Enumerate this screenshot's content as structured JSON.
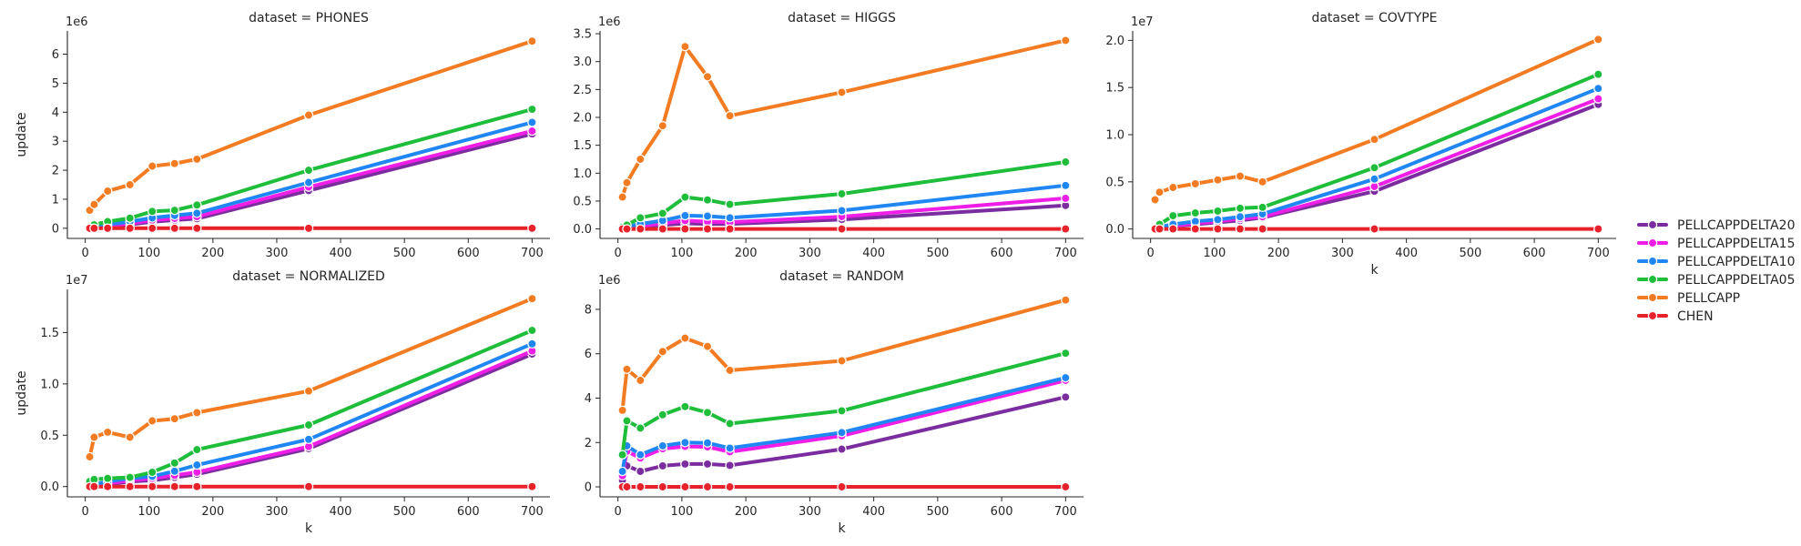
{
  "chart_data": {
    "type": "line",
    "x_label": "k",
    "y_label": "update",
    "legend": {
      "placement": "right",
      "entries": [
        "PELLCAPPDELTA20",
        "PELLCAPPDELTA15",
        "PELLCAPPDELTA10",
        "PELLCAPPDELTA05",
        "PELLCAPP",
        "CHEN"
      ]
    },
    "colors": {
      "PELLCAPPDELTA20": "#7b2d9f",
      "PELLCAPPDELTA15": "#ee1ee6",
      "PELLCAPPDELTA10": "#1f86f4",
      "PELLCAPPDELTA05": "#1ebd3a",
      "PELLCAPP": "#f37b22",
      "CHEN": "#e8222b"
    },
    "x": [
      7,
      14,
      35,
      70,
      105,
      140,
      175,
      350,
      700
    ],
    "panels": [
      {
        "title": "dataset = PHONES",
        "offset": "1e6",
        "ylim": [
          -0.35,
          6.8
        ],
        "yticks": [
          0,
          1,
          2,
          3,
          4,
          5,
          6
        ],
        "ytick_labels": [
          "0",
          "1",
          "2",
          "3",
          "4",
          "5",
          "6"
        ],
        "series": [
          {
            "name": "PELLCAPPDELTA20",
            "values": [
              0.01,
              0.03,
              0.07,
              0.13,
              0.22,
              0.28,
              0.33,
              1.3,
              3.25
            ]
          },
          {
            "name": "PELLCAPPDELTA15",
            "values": [
              0.01,
              0.04,
              0.09,
              0.16,
              0.28,
              0.34,
              0.4,
              1.42,
              3.35
            ]
          },
          {
            "name": "PELLCAPPDELTA10",
            "values": [
              0.02,
              0.06,
              0.13,
              0.23,
              0.36,
              0.44,
              0.52,
              1.58,
              3.65
            ]
          },
          {
            "name": "PELLCAPPDELTA05",
            "values": [
              0.05,
              0.12,
              0.23,
              0.35,
              0.58,
              0.62,
              0.8,
              2.0,
              4.1
            ]
          },
          {
            "name": "PELLCAPP",
            "values": [
              0.62,
              0.82,
              1.28,
              1.5,
              2.14,
              2.23,
              2.38,
              3.9,
              6.45
            ]
          },
          {
            "name": "CHEN",
            "values": [
              0.0,
              0.0,
              0.0,
              0.0,
              0.0,
              0.0,
              0.0,
              0.0,
              0.0
            ]
          }
        ]
      },
      {
        "title": "dataset = HIGGS",
        "offset": "1e6",
        "ylim": [
          -0.17,
          3.55
        ],
        "yticks": [
          0,
          0.5,
          1.0,
          1.5,
          2.0,
          2.5,
          3.0,
          3.5
        ],
        "ytick_labels": [
          "0.0",
          "0.5",
          "1.0",
          "1.5",
          "2.0",
          "2.5",
          "3.0",
          "3.5"
        ],
        "series": [
          {
            "name": "PELLCAPPDELTA20",
            "values": [
              0.01,
              0.02,
              0.04,
              0.07,
              0.1,
              0.09,
              0.09,
              0.17,
              0.42
            ]
          },
          {
            "name": "PELLCAPPDELTA15",
            "values": [
              0.01,
              0.02,
              0.05,
              0.1,
              0.15,
              0.13,
              0.12,
              0.22,
              0.55
            ]
          },
          {
            "name": "PELLCAPPDELTA10",
            "values": [
              0.02,
              0.04,
              0.09,
              0.15,
              0.24,
              0.23,
              0.2,
              0.33,
              0.78
            ]
          },
          {
            "name": "PELLCAPPDELTA05",
            "values": [
              0.03,
              0.07,
              0.2,
              0.28,
              0.57,
              0.52,
              0.44,
              0.63,
              1.2
            ]
          },
          {
            "name": "PELLCAPP",
            "values": [
              0.57,
              0.83,
              1.25,
              1.85,
              3.27,
              2.73,
              2.03,
              2.45,
              3.38
            ]
          },
          {
            "name": "CHEN",
            "values": [
              0.0,
              0.0,
              0.0,
              0.0,
              0.0,
              0.0,
              0.0,
              0.0,
              0.0
            ]
          }
        ]
      },
      {
        "title": "dataset = COVTYPE",
        "offset": "1e7",
        "ylim": [
          -0.1,
          2.1
        ],
        "yticks": [
          0,
          0.5,
          1.0,
          1.5,
          2.0
        ],
        "ytick_labels": [
          "0.0",
          "0.5",
          "1.0",
          "1.5",
          "2.0"
        ],
        "series": [
          {
            "name": "PELLCAPPDELTA20",
            "values": [
              0.0,
              0.01,
              0.03,
              0.05,
              0.07,
              0.09,
              0.12,
              0.4,
              1.32
            ]
          },
          {
            "name": "PELLCAPPDELTA15",
            "values": [
              0.0,
              0.01,
              0.03,
              0.06,
              0.08,
              0.11,
              0.13,
              0.45,
              1.38
            ]
          },
          {
            "name": "PELLCAPPDELTA10",
            "values": [
              0.0,
              0.02,
              0.05,
              0.08,
              0.1,
              0.13,
              0.16,
              0.53,
              1.49
            ]
          },
          {
            "name": "PELLCAPPDELTA05",
            "values": [
              0.0,
              0.05,
              0.14,
              0.17,
              0.19,
              0.22,
              0.23,
              0.65,
              1.64
            ]
          },
          {
            "name": "PELLCAPP",
            "values": [
              0.31,
              0.39,
              0.44,
              0.48,
              0.52,
              0.56,
              0.5,
              0.95,
              2.01
            ]
          },
          {
            "name": "CHEN",
            "values": [
              0.0,
              0.0,
              0.0,
              0.0,
              0.0,
              0.0,
              0.0,
              0.0,
              0.0
            ]
          }
        ]
      },
      {
        "title": "dataset = NORMALIZED",
        "offset": "1e7",
        "ylim": [
          -0.1,
          1.92
        ],
        "yticks": [
          0,
          0.5,
          1.0,
          1.5
        ],
        "ytick_labels": [
          "0.0",
          "0.5",
          "1.0",
          "1.5"
        ],
        "series": [
          {
            "name": "PELLCAPPDELTA20",
            "values": [
              0.0,
              0.01,
              0.02,
              0.05,
              0.06,
              0.09,
              0.12,
              0.37,
              1.29
            ]
          },
          {
            "name": "PELLCAPPDELTA15",
            "values": [
              0.0,
              0.01,
              0.03,
              0.06,
              0.08,
              0.11,
              0.14,
              0.39,
              1.32
            ]
          },
          {
            "name": "PELLCAPPDELTA10",
            "values": [
              0.01,
              0.02,
              0.05,
              0.08,
              0.1,
              0.15,
              0.21,
              0.46,
              1.39
            ]
          },
          {
            "name": "PELLCAPPDELTA05",
            "values": [
              0.05,
              0.07,
              0.08,
              0.09,
              0.14,
              0.23,
              0.36,
              0.6,
              1.52
            ]
          },
          {
            "name": "PELLCAPP",
            "values": [
              0.29,
              0.48,
              0.53,
              0.48,
              0.64,
              0.66,
              0.72,
              0.93,
              1.83
            ]
          },
          {
            "name": "CHEN",
            "values": [
              0.0,
              0.0,
              0.0,
              0.0,
              0.0,
              0.0,
              0.0,
              0.0,
              0.0
            ]
          }
        ]
      },
      {
        "title": "dataset = RANDOM",
        "offset": "1e6",
        "ylim": [
          -0.45,
          8.9
        ],
        "yticks": [
          0,
          2,
          4,
          6,
          8
        ],
        "ytick_labels": [
          "0",
          "2",
          "4",
          "6",
          "8"
        ],
        "series": [
          {
            "name": "PELLCAPPDELTA20",
            "values": [
              0.3,
              0.95,
              0.7,
              0.95,
              1.03,
              1.03,
              0.97,
              1.7,
              4.05
            ]
          },
          {
            "name": "PELLCAPPDELTA15",
            "values": [
              0.5,
              1.6,
              1.3,
              1.72,
              1.82,
              1.8,
              1.58,
              2.3,
              4.8
            ]
          },
          {
            "name": "PELLCAPPDELTA10",
            "values": [
              0.7,
              1.85,
              1.45,
              1.85,
              2.0,
              1.98,
              1.75,
              2.45,
              4.92
            ]
          },
          {
            "name": "PELLCAPPDELTA05",
            "values": [
              1.45,
              2.98,
              2.65,
              3.25,
              3.62,
              3.35,
              2.85,
              3.43,
              6.02
            ]
          },
          {
            "name": "PELLCAPP",
            "values": [
              3.45,
              5.3,
              4.8,
              6.1,
              6.7,
              6.33,
              5.25,
              5.68,
              8.42
            ]
          },
          {
            "name": "CHEN",
            "values": [
              0.0,
              0.0,
              0.0,
              0.0,
              0.0,
              0.0,
              0.0,
              0.0,
              0.0
            ]
          }
        ]
      }
    ]
  }
}
